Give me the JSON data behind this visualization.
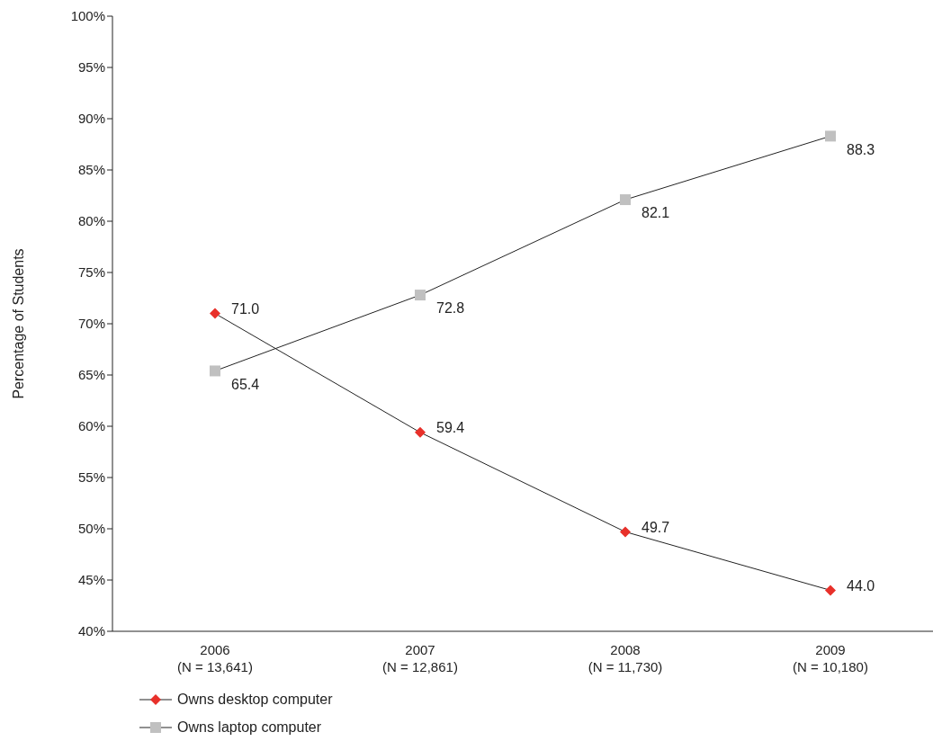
{
  "chart_data": {
    "type": "line",
    "ylabel": "Percentage of Students",
    "categories": [
      "2006\n(N = 13,641)",
      "2007\n(N = 12,861)",
      "2008\n(N = 11,730)",
      "2009\n(N = 10,180)"
    ],
    "series": [
      {
        "name": "Owns desktop computer",
        "color": "#e8302a",
        "marker": "diamond",
        "values": [
          71.0,
          59.4,
          49.7,
          44.0
        ],
        "value_labels": [
          "71.0",
          "59.4",
          "49.7",
          "44.0"
        ]
      },
      {
        "name": "Owns laptop computer",
        "color": "#c0c0c0",
        "marker": "square",
        "values": [
          65.4,
          72.8,
          82.1,
          88.3
        ],
        "value_labels": [
          "65.4",
          "72.8",
          "82.1",
          "88.3"
        ]
      }
    ],
    "ylim": [
      40,
      100
    ],
    "yticks": [
      {
        "value": 40,
        "label": "40%"
      },
      {
        "value": 45,
        "label": "45%"
      },
      {
        "value": 50,
        "label": "50%"
      },
      {
        "value": 55,
        "label": "55%"
      },
      {
        "value": 60,
        "label": "60%"
      },
      {
        "value": 65,
        "label": "65%"
      },
      {
        "value": 70,
        "label": "70%"
      },
      {
        "value": 75,
        "label": "75%"
      },
      {
        "value": 80,
        "label": "80%"
      },
      {
        "value": 85,
        "label": "85%"
      },
      {
        "value": 90,
        "label": "90%"
      },
      {
        "value": 95,
        "label": "95%"
      },
      {
        "value": 100,
        "label": "100%"
      }
    ],
    "grid": false,
    "legend": "bottom left",
    "line_style": "solid"
  }
}
